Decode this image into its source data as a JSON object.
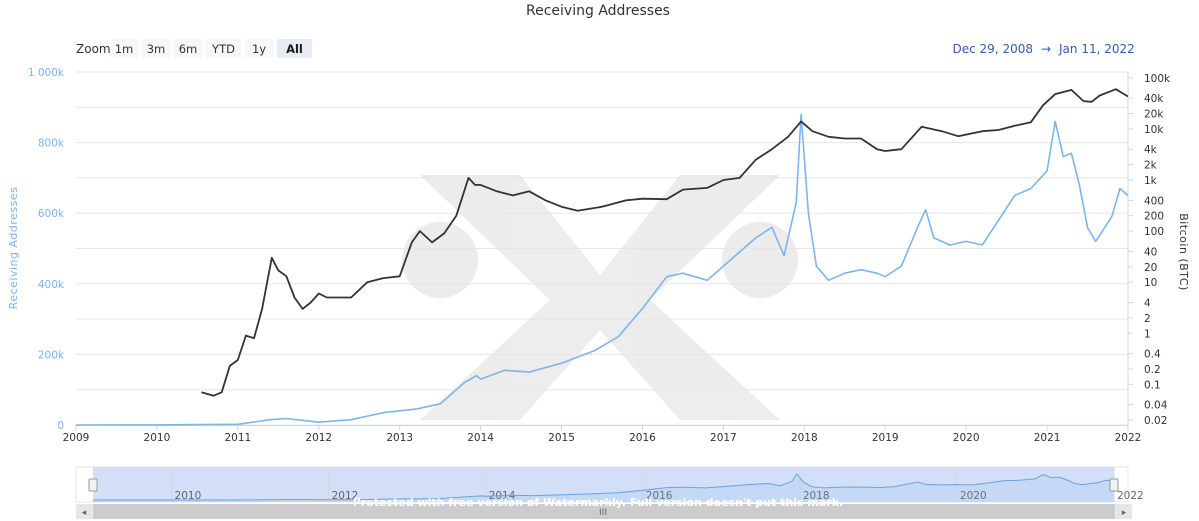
{
  "toolbar": {
    "zoom_label": "Zoom",
    "buttons": [
      "1m",
      "3m",
      "6m",
      "YTD",
      "1y",
      "All"
    ],
    "selected": "All",
    "range_from": "Dec 29, 2008",
    "range_arrow": "→",
    "range_to": "Jan 11, 2022"
  },
  "watermark": {
    "text": "Protected with free version of Watermarkly. Full version doesn't put this mark."
  },
  "navigator": {
    "scroll_grip": "III",
    "scroll_left": "◂",
    "scroll_right": "▸"
  },
  "colors": {
    "addresses": "#7cb5ec",
    "bitcoin": "#333333",
    "navigator_fill": "#c8d7f5"
  },
  "chart_data": {
    "type": "line",
    "title": "Receiving Addresses",
    "xlabel": "",
    "x_ticks": [
      "2009",
      "2010",
      "2011",
      "2012",
      "2013",
      "2014",
      "2015",
      "2016",
      "2017",
      "2018",
      "2019",
      "2020",
      "2021",
      "2022"
    ],
    "navigator_ticks": [
      "2010",
      "2012",
      "2014",
      "2016",
      "2018",
      "2020",
      "2022"
    ],
    "y_left": {
      "label": "Receiving Addresses",
      "ticks": [
        "0",
        "200k",
        "400k",
        "600k",
        "800k",
        "1 000k"
      ],
      "ylim": [
        0,
        1000000
      ]
    },
    "y_right": {
      "label": "Bitcoin (BTC)",
      "scale": "log",
      "ticks": [
        "0.02",
        "0.04",
        "0.1",
        "0.2",
        "0.4",
        "1",
        "2",
        "4",
        "10",
        "20",
        "40",
        "100",
        "200",
        "400",
        "1k",
        "2k",
        "4k",
        "10k",
        "20k",
        "40k",
        "100k"
      ],
      "ylim": [
        0.016,
        130000
      ]
    },
    "series": [
      {
        "name": "Receiving Addresses",
        "axis": "left",
        "x": [
          2009.0,
          2010.0,
          2010.5,
          2011.0,
          2011.4,
          2011.6,
          2012.0,
          2012.4,
          2012.8,
          2013.2,
          2013.5,
          2013.8,
          2013.95,
          2014.0,
          2014.3,
          2014.6,
          2015.0,
          2015.4,
          2015.7,
          2016.0,
          2016.3,
          2016.5,
          2016.8,
          2017.0,
          2017.2,
          2017.4,
          2017.6,
          2017.75,
          2017.9,
          2017.96,
          2018.05,
          2018.15,
          2018.3,
          2018.5,
          2018.7,
          2018.9,
          2019.0,
          2019.2,
          2019.4,
          2019.5,
          2019.6,
          2019.8,
          2020.0,
          2020.2,
          2020.4,
          2020.6,
          2020.8,
          2021.0,
          2021.1,
          2021.2,
          2021.3,
          2021.4,
          2021.5,
          2021.6,
          2021.8,
          2021.9,
          2022.0
        ],
        "values": [
          0,
          200,
          1000,
          2000,
          15000,
          18000,
          8000,
          15000,
          35000,
          45000,
          60000,
          120000,
          140000,
          130000,
          155000,
          150000,
          175000,
          210000,
          250000,
          330000,
          420000,
          430000,
          410000,
          450000,
          490000,
          530000,
          560000,
          480000,
          630000,
          880000,
          600000,
          450000,
          410000,
          430000,
          440000,
          430000,
          420000,
          450000,
          560000,
          610000,
          530000,
          510000,
          520000,
          510000,
          580000,
          650000,
          670000,
          720000,
          860000,
          760000,
          770000,
          680000,
          560000,
          520000,
          590000,
          670000,
          650000
        ]
      },
      {
        "name": "Bitcoin (BTC)",
        "axis": "right",
        "x": [
          2010.55,
          2010.7,
          2010.8,
          2010.9,
          2011.0,
          2011.1,
          2011.2,
          2011.3,
          2011.42,
          2011.5,
          2011.6,
          2011.7,
          2011.8,
          2011.9,
          2012.0,
          2012.1,
          2012.2,
          2012.4,
          2012.6,
          2012.8,
          2013.0,
          2013.15,
          2013.25,
          2013.4,
          2013.55,
          2013.7,
          2013.85,
          2013.93,
          2014.0,
          2014.2,
          2014.4,
          2014.6,
          2014.8,
          2015.0,
          2015.2,
          2015.5,
          2015.8,
          2016.0,
          2016.3,
          2016.5,
          2016.8,
          2017.0,
          2017.2,
          2017.4,
          2017.6,
          2017.8,
          2017.96,
          2018.1,
          2018.3,
          2018.5,
          2018.7,
          2018.9,
          2019.0,
          2019.2,
          2019.45,
          2019.7,
          2019.9,
          2020.2,
          2020.4,
          2020.6,
          2020.8,
          2020.95,
          2021.1,
          2021.3,
          2021.45,
          2021.55,
          2021.65,
          2021.85,
          2021.95,
          2022.0
        ],
        "values": [
          0.07,
          0.06,
          0.07,
          0.23,
          0.3,
          0.9,
          0.8,
          3,
          30,
          17,
          13,
          5,
          3,
          4,
          6,
          5,
          5,
          5,
          10,
          12,
          13,
          60,
          100,
          60,
          90,
          200,
          1100,
          800,
          800,
          600,
          500,
          600,
          400,
          300,
          250,
          300,
          400,
          430,
          420,
          650,
          700,
          1000,
          1100,
          2500,
          4000,
          7000,
          14000,
          9000,
          7000,
          6500,
          6500,
          4000,
          3700,
          4000,
          11000,
          9000,
          7200,
          9000,
          9500,
          11500,
          13500,
          29000,
          48000,
          58000,
          35000,
          34000,
          45000,
          60000,
          48000,
          43000
        ]
      }
    ]
  }
}
